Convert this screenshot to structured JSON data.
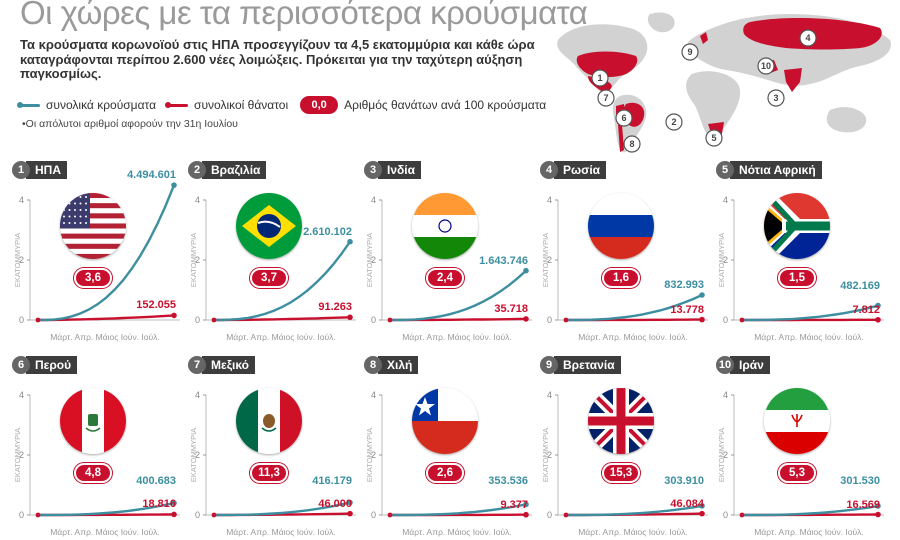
{
  "title": "Οι χώρες με τα περισσότερα κρούσματα",
  "subtitle": "Τα κρούσματα κορωνοϊού στις ΗΠΑ προσεγγίζουν τα 4,5 εκατομμύρια και κάθε ώρα καταγράφονται περίπου 2.600 νέες λοιμώξεις. Πρόκειται για την ταχύτερη αύξηση παγκοσμίως.",
  "legend": {
    "cases_label": "συνολικά κρούσματα",
    "deaths_label": "συνολικοί θάνατοι",
    "ratio_sample": "0,0",
    "ratio_label": "Αριθμός θανάτων ανά 100 κρούσματα"
  },
  "note": "•Οι απόλυτοι αριθμοί αφορούν την 31η Ιουλίου",
  "colors": {
    "cases": "#3d8fa0",
    "deaths": "#c8102e",
    "map_highlight": "#c8102e",
    "map_land": "#d2d2d2"
  },
  "map_numbers": [
    "4",
    "9",
    "10",
    "1",
    "7",
    "3",
    "6",
    "2",
    "5",
    "8"
  ],
  "axis": {
    "ylabel": "ΕΚΑΤΟΜΜΥΡΙΑ",
    "yticks": [
      "0",
      "2",
      "4"
    ],
    "months": "Μάρτ. Απρ. Μάιος Ιούν. Ιούλ."
  },
  "chart_data": [
    {
      "type": "line",
      "rank": "1",
      "country": "ΗΠΑ",
      "flag": "us",
      "ratio": "3,6",
      "cases_label": "4.494.601",
      "deaths_label": "152.055",
      "cases": 4.494601,
      "deaths": 0.152055,
      "ylim": [
        0,
        4
      ],
      "x": [
        "Μάρτ.",
        "Απρ.",
        "Μάιος",
        "Ιούν.",
        "Ιούλ."
      ]
    },
    {
      "type": "line",
      "rank": "2",
      "country": "Βραζιλία",
      "flag": "br",
      "ratio": "3,7",
      "cases_label": "2.610.102",
      "deaths_label": "91.263",
      "cases": 2.610102,
      "deaths": 0.091263,
      "ylim": [
        0,
        4
      ],
      "x": [
        "Μάρτ.",
        "Απρ.",
        "Μάιος",
        "Ιούν.",
        "Ιούλ."
      ]
    },
    {
      "type": "line",
      "rank": "3",
      "country": "Ινδία",
      "flag": "in",
      "ratio": "2,4",
      "cases_label": "1.643.746",
      "deaths_label": "35.718",
      "cases": 1.643746,
      "deaths": 0.035718,
      "ylim": [
        0,
        4
      ],
      "x": [
        "Μάρτ.",
        "Απρ.",
        "Μάιος",
        "Ιούν.",
        "Ιούλ."
      ]
    },
    {
      "type": "line",
      "rank": "4",
      "country": "Ρωσία",
      "flag": "ru",
      "ratio": "1,6",
      "cases_label": "832.993",
      "deaths_label": "13.778",
      "cases": 0.832993,
      "deaths": 0.013778,
      "ylim": [
        0,
        4
      ],
      "x": [
        "Μάρτ.",
        "Απρ.",
        "Μάιος",
        "Ιούν.",
        "Ιούλ."
      ]
    },
    {
      "type": "line",
      "rank": "5",
      "country": "Νότια Αφρική",
      "flag": "za",
      "ratio": "1,5",
      "cases_label": "482.169",
      "deaths_label": "7.812",
      "cases": 0.482169,
      "deaths": 0.007812,
      "ylim": [
        0,
        4
      ],
      "x": [
        "Μάρτ.",
        "Απρ.",
        "Μάιος",
        "Ιούν.",
        "Ιούλ."
      ]
    },
    {
      "type": "line",
      "rank": "6",
      "country": "Περού",
      "flag": "pe",
      "ratio": "4,8",
      "cases_label": "400.683",
      "deaths_label": "18.816",
      "cases": 0.400683,
      "deaths": 0.018816,
      "ylim": [
        0,
        4
      ],
      "x": [
        "Μάρτ.",
        "Απρ.",
        "Μάιος",
        "Ιούν.",
        "Ιούλ."
      ]
    },
    {
      "type": "line",
      "rank": "7",
      "country": "Μεξικό",
      "flag": "mx",
      "ratio": "11,3",
      "cases_label": "416.179",
      "deaths_label": "46.000",
      "cases": 0.416179,
      "deaths": 0.046,
      "ylim": [
        0,
        4
      ],
      "x": [
        "Μάρτ.",
        "Απρ.",
        "Μάιος",
        "Ιούν.",
        "Ιούλ."
      ]
    },
    {
      "type": "line",
      "rank": "8",
      "country": "Χιλή",
      "flag": "cl",
      "ratio": "2,6",
      "cases_label": "353.536",
      "deaths_label": "9.377",
      "cases": 0.353536,
      "deaths": 0.009377,
      "ylim": [
        0,
        4
      ],
      "x": [
        "Μάρτ.",
        "Απρ.",
        "Μάιος",
        "Ιούν.",
        "Ιούλ."
      ]
    },
    {
      "type": "line",
      "rank": "9",
      "country": "Βρετανία",
      "flag": "gb",
      "ratio": "15,3",
      "cases_label": "303.910",
      "deaths_label": "46.084",
      "cases": 0.30391,
      "deaths": 0.046084,
      "ylim": [
        0,
        4
      ],
      "x": [
        "Μάρτ.",
        "Απρ.",
        "Μάιος",
        "Ιούν.",
        "Ιούλ."
      ]
    },
    {
      "type": "line",
      "rank": "10",
      "country": "Ιράν",
      "flag": "ir",
      "ratio": "5,3",
      "cases_label": "301.530",
      "deaths_label": "16.569",
      "cases": 0.30153,
      "deaths": 0.016569,
      "ylim": [
        0,
        4
      ],
      "x": [
        "Μάρτ.",
        "Απρ.",
        "Μάιος",
        "Ιούν.",
        "Ιούλ."
      ]
    }
  ]
}
